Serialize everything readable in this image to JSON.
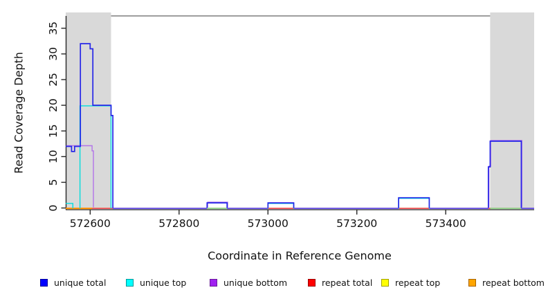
{
  "figure": {
    "xlabel": "Coordinate in Reference Genome",
    "ylabel": "Read Coverage Depth"
  },
  "chart_data": {
    "type": "line",
    "subtype": "step-coverage",
    "title": "",
    "xlabel": "Coordinate in Reference Genome",
    "ylabel": "Read Coverage Depth",
    "xlim": [
      572545,
      573599
    ],
    "ylim": [
      0,
      37
    ],
    "grid": false,
    "x_ticks": [
      572600,
      572800,
      573000,
      573200,
      573400
    ],
    "x_tick_labels": [
      "572600",
      "572800",
      "573000",
      "573200",
      "573400"
    ],
    "y_ticks": [
      0,
      5,
      10,
      15,
      20,
      25,
      30,
      35
    ],
    "y_tick_labels": [
      "0",
      "5",
      "10",
      "15",
      "20",
      "25",
      "30",
      "35"
    ],
    "shaded_regions": [
      {
        "name": "repeat-region-left",
        "from": 572545,
        "to": 572647,
        "color": "#d9d9d9"
      },
      {
        "name": "repeat-region-right",
        "from": 573500,
        "to": 573599,
        "color": "#d9d9d9"
      }
    ],
    "series": [
      {
        "name": "unique total",
        "color": "#2626e8",
        "width": 1.7,
        "segments": [
          [
            [
              572545,
              12
            ],
            [
              572558,
              12
            ],
            [
              572558,
              11
            ],
            [
              572565,
              11
            ],
            [
              572565,
              12
            ],
            [
              572578,
              12
            ],
            [
              572578,
              32
            ],
            [
              572600,
              32
            ],
            [
              572600,
              31
            ],
            [
              572606,
              31
            ],
            [
              572606,
              20
            ],
            [
              572647,
              20
            ],
            [
              572647,
              18
            ],
            [
              572651,
              18
            ],
            [
              572651,
              0
            ]
          ],
          [
            [
              572863,
              0
            ],
            [
              572863,
              1
            ],
            [
              572908,
              1
            ],
            [
              572908,
              0
            ]
          ],
          [
            [
              573000,
              0
            ],
            [
              573000,
              1
            ],
            [
              573058,
              1
            ],
            [
              573058,
              0
            ]
          ],
          [
            [
              573294,
              0
            ],
            [
              573294,
              2
            ],
            [
              573363,
              2
            ],
            [
              573363,
              0
            ]
          ],
          [
            [
              573496,
              0
            ],
            [
              573496,
              8
            ],
            [
              573500,
              8
            ],
            [
              573500,
              13
            ],
            [
              573570,
              13
            ],
            [
              573570,
              0
            ]
          ]
        ]
      },
      {
        "name": "unique top",
        "color": "#00dede",
        "width": 1.4,
        "segments": [
          [
            [
              572545,
              1
            ],
            [
              572561,
              1
            ],
            [
              572561,
              0
            ]
          ],
          [
            [
              572577,
              0
            ],
            [
              572577,
              20
            ],
            [
              572647,
              20
            ],
            [
              572647,
              0
            ]
          ],
          [
            [
              573000,
              0
            ],
            [
              573000,
              1
            ],
            [
              573058,
              1
            ],
            [
              573058,
              0
            ]
          ],
          [
            [
              573294,
              0
            ],
            [
              573294,
              2
            ],
            [
              573363,
              2
            ],
            [
              573363,
              0
            ]
          ]
        ]
      },
      {
        "name": "unique bottom",
        "color": "#b273e8",
        "width": 1.4,
        "segments": [
          [
            [
              572545,
              12
            ],
            [
              572603,
              12
            ],
            [
              572603,
              11
            ],
            [
              572606,
              11
            ],
            [
              572606,
              0
            ]
          ],
          [
            [
              572863,
              0
            ],
            [
              572863,
              1
            ],
            [
              572908,
              1
            ],
            [
              572908,
              0
            ]
          ],
          [
            [
              573496,
              0
            ],
            [
              573496,
              8
            ],
            [
              573500,
              8
            ],
            [
              573500,
              13
            ],
            [
              573570,
              13
            ],
            [
              573570,
              0
            ]
          ]
        ]
      },
      {
        "name": "repeat total",
        "color": "#ee5566",
        "width": 1.8,
        "segments": [
          [
            [
              572545,
              0
            ],
            [
              573599,
              0
            ]
          ]
        ]
      },
      {
        "name": "repeat top",
        "color": "#f0e030",
        "width": 1.6,
        "segments": [
          [
            [
              572545,
              0
            ],
            [
              573599,
              0
            ]
          ]
        ]
      },
      {
        "name": "repeat bottom",
        "color": "#ff9400",
        "width": 1.8,
        "segments": [
          [
            [
              572545,
              0
            ],
            [
              573599,
              0
            ]
          ]
        ]
      }
    ],
    "baseline_overlays": [
      {
        "from": 572545,
        "to": 572604,
        "color": "#ff9400"
      },
      {
        "from": 572651,
        "to": 572863,
        "color": "#6a5aec"
      },
      {
        "from": 572863,
        "to": 572908,
        "color": "#93d693"
      },
      {
        "from": 572908,
        "to": 573000,
        "color": "#6a5aec"
      },
      {
        "from": 573058,
        "to": 573294,
        "color": "#6a5aec"
      },
      {
        "from": 573363,
        "to": 573496,
        "color": "#6a5aec"
      },
      {
        "from": 573500,
        "to": 573570,
        "color": "#93d693"
      },
      {
        "from": 573570,
        "to": 573599,
        "color": "#6a5aec"
      }
    ],
    "legend_position": "bottom"
  },
  "legend": {
    "items": [
      {
        "label": "unique total",
        "fill": "#0000ff",
        "border": "#000099"
      },
      {
        "label": "unique top",
        "fill": "#00ffff",
        "border": "#009999"
      },
      {
        "label": "unique bottom",
        "fill": "#a020f0",
        "border": "#6a1b9a"
      },
      {
        "label": "repeat total",
        "fill": "#ff0000",
        "border": "#990000"
      },
      {
        "label": "repeat top",
        "fill": "#ffff00",
        "border": "#a0a000"
      },
      {
        "label": "repeat bottom",
        "fill": "#ffa500",
        "border": "#a66300"
      }
    ]
  }
}
